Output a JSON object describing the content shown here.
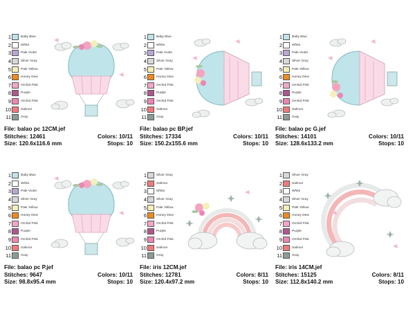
{
  "designs": [
    {
      "palette": [
        {
          "num": "1",
          "name": "Baby Blue",
          "color": "#bfe4ea"
        },
        {
          "num": "2",
          "name": "White",
          "color": "#ffffff"
        },
        {
          "num": "3",
          "name": "Pale Violet",
          "color": "#b9a6d6"
        },
        {
          "num": "4",
          "name": "Silver Gray",
          "color": "#d8d8d8"
        },
        {
          "num": "5",
          "name": "Pale Yellow",
          "color": "#f6efb8"
        },
        {
          "num": "6",
          "name": "Honey Dew",
          "color": "#f08a1c"
        },
        {
          "num": "7",
          "name": "Orchid Pink",
          "color": "#f4a6c8"
        },
        {
          "num": "8",
          "name": "Purple",
          "color": "#b0568f"
        },
        {
          "num": "9",
          "name": "Orchid Pink",
          "color": "#ee86b4"
        },
        {
          "num": "10",
          "name": "Salmon",
          "color": "#f07a7a"
        },
        {
          "num": "11",
          "name": "Gray",
          "color": "#8c9c96"
        }
      ],
      "file": "File: balao pc 12CM.jef",
      "stitches": "Stitches: 12461",
      "size": "Size: 120.6x116.6 mm",
      "colors": "Colors: 10/11",
      "stops": "Stops: 10"
    },
    {
      "palette": [
        {
          "num": "1",
          "name": "Baby Blue",
          "color": "#bfe4ea"
        },
        {
          "num": "2",
          "name": "White",
          "color": "#ffffff"
        },
        {
          "num": "3",
          "name": "Pale Violet",
          "color": "#b9a6d6"
        },
        {
          "num": "4",
          "name": "Silver Gray",
          "color": "#d8d8d8"
        },
        {
          "num": "5",
          "name": "Pale Yellow",
          "color": "#f6efb8"
        },
        {
          "num": "6",
          "name": "Honey Dew",
          "color": "#f08a1c"
        },
        {
          "num": "7",
          "name": "Orchid Pink",
          "color": "#f4a6c8"
        },
        {
          "num": "8",
          "name": "Purple",
          "color": "#b0568f"
        },
        {
          "num": "9",
          "name": "Orchid Pink",
          "color": "#ee86b4"
        },
        {
          "num": "10",
          "name": "Salmon",
          "color": "#f07a7a"
        },
        {
          "num": "11",
          "name": "Gray",
          "color": "#8c9c96"
        }
      ],
      "file": "File: balao pc BP.jef",
      "stitches": "Stitches: 17334",
      "size": "Size: 150.2x155.6 mm",
      "colors": "Colors: 10/11",
      "stops": "Stops: 10"
    },
    {
      "palette": [
        {
          "num": "1",
          "name": "Baby Blue",
          "color": "#bfe4ea"
        },
        {
          "num": "2",
          "name": "White",
          "color": "#ffffff"
        },
        {
          "num": "3",
          "name": "Pale Violet",
          "color": "#b9a6d6"
        },
        {
          "num": "4",
          "name": "Silver Gray",
          "color": "#d8d8d8"
        },
        {
          "num": "5",
          "name": "Pale Yellow",
          "color": "#f6efb8"
        },
        {
          "num": "6",
          "name": "Honey Dew",
          "color": "#f08a1c"
        },
        {
          "num": "7",
          "name": "Orchid Pink",
          "color": "#f4a6c8"
        },
        {
          "num": "8",
          "name": "Purple",
          "color": "#b0568f"
        },
        {
          "num": "9",
          "name": "Orchid Pink",
          "color": "#ee86b4"
        },
        {
          "num": "10",
          "name": "Salmon",
          "color": "#f07a7a"
        },
        {
          "num": "11",
          "name": "Gray",
          "color": "#8c9c96"
        }
      ],
      "file": "File: balao pc G.jef",
      "stitches": "Stitches: 14101",
      "size": "Size: 128.6x133.2 mm",
      "colors": "Colors: 10/11",
      "stops": "Stops: 10"
    },
    {
      "palette": [
        {
          "num": "1",
          "name": "Baby Blue",
          "color": "#bfe4ea"
        },
        {
          "num": "2",
          "name": "White",
          "color": "#ffffff"
        },
        {
          "num": "3",
          "name": "Pale Violet",
          "color": "#b9a6d6"
        },
        {
          "num": "4",
          "name": "Silver Gray",
          "color": "#d8d8d8"
        },
        {
          "num": "5",
          "name": "Pale Yellow",
          "color": "#f6efb8"
        },
        {
          "num": "6",
          "name": "Honey Dew",
          "color": "#f08a1c"
        },
        {
          "num": "7",
          "name": "Orchid Pink",
          "color": "#f4a6c8"
        },
        {
          "num": "8",
          "name": "Purple",
          "color": "#b0568f"
        },
        {
          "num": "9",
          "name": "Orchid Pink",
          "color": "#ee86b4"
        },
        {
          "num": "10",
          "name": "Salmon",
          "color": "#f07a7a"
        },
        {
          "num": "11",
          "name": "Gray",
          "color": "#8c9c96"
        }
      ],
      "file": "File: balao pc P.jef",
      "stitches": "Stitches: 9647",
      "size": "Size: 98.8x95.4 mm",
      "colors": "Colors: 10/11",
      "stops": "Stops: 10"
    },
    {
      "palette": [
        {
          "num": "1",
          "name": "Silver Gray",
          "color": "#d8d8d8"
        },
        {
          "num": "2",
          "name": "Salmon",
          "color": "#f07a7a"
        },
        {
          "num": "3",
          "name": "White",
          "color": "#ffffff"
        },
        {
          "num": "4",
          "name": "Silver Gray",
          "color": "#d8d8d8"
        },
        {
          "num": "5",
          "name": "Pale Yellow",
          "color": "#f6efb8"
        },
        {
          "num": "6",
          "name": "Honey Dew",
          "color": "#f08a1c"
        },
        {
          "num": "7",
          "name": "Orchid Pink",
          "color": "#f4a6c8"
        },
        {
          "num": "8",
          "name": "Purple",
          "color": "#b0568f"
        },
        {
          "num": "9",
          "name": "Orchid Pink",
          "color": "#ee86b4"
        },
        {
          "num": "10",
          "name": "Salmon",
          "color": "#f07a7a"
        },
        {
          "num": "11",
          "name": "Gray",
          "color": "#8c9c96"
        }
      ],
      "file": "File: iris 12CM.jef",
      "stitches": "Stitches: 12781",
      "size": "Size: 120.4x97.2 mm",
      "colors": "Colors: 8/11",
      "stops": "Stops: 10"
    },
    {
      "palette": [
        {
          "num": "1",
          "name": "Silver Gray",
          "color": "#d8d8d8"
        },
        {
          "num": "2",
          "name": "Salmon",
          "color": "#f07a7a"
        },
        {
          "num": "3",
          "name": "White",
          "color": "#ffffff"
        },
        {
          "num": "4",
          "name": "Silver Gray",
          "color": "#d8d8d8"
        },
        {
          "num": "5",
          "name": "Pale Yellow",
          "color": "#f6efb8"
        },
        {
          "num": "6",
          "name": "Honey Dew",
          "color": "#f08a1c"
        },
        {
          "num": "7",
          "name": "Orchid Pink",
          "color": "#f4a6c8"
        },
        {
          "num": "8",
          "name": "Purple",
          "color": "#b0568f"
        },
        {
          "num": "9",
          "name": "Orchid Pink",
          "color": "#ee86b4"
        },
        {
          "num": "10",
          "name": "Salmon",
          "color": "#f07a7a"
        },
        {
          "num": "11",
          "name": "Gray",
          "color": "#8c9c96"
        }
      ],
      "file": "File: iris 14CM.jef",
      "stitches": "Stitches: 15125",
      "size": "Size: 112.8x140.2 mm",
      "colors": "Colors: 8/11",
      "stops": "Stops: 10"
    }
  ]
}
